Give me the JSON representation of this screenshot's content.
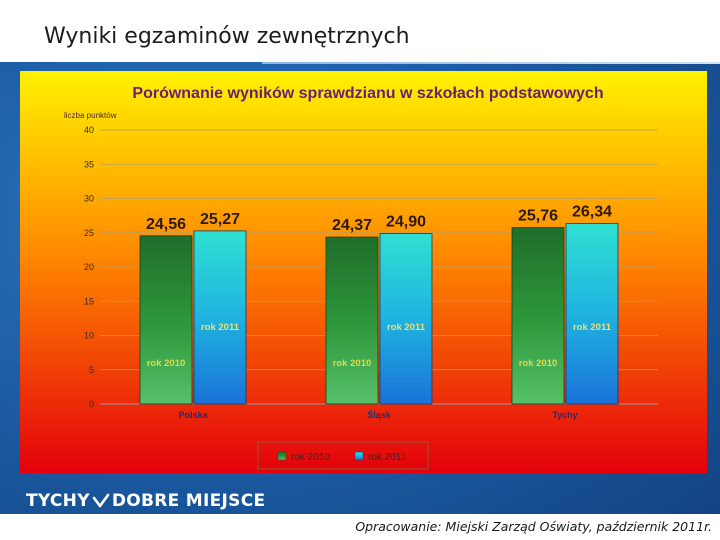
{
  "slide": {
    "title": "Wyniki egzaminów zewnętrznych",
    "footer": "Opracowanie: Miejski Zarząd Oświaty, październik 2011r."
  },
  "logo": {
    "left": "TYCHY",
    "right": "DOBRE MIEJSCE"
  },
  "colors": {
    "rok2010": "#2e8b3c",
    "rok2011": "#1f9fd6",
    "panel_top": "#ffef00",
    "panel_bottom": "#e8000a"
  },
  "chart_data": {
    "type": "bar",
    "title": "Porównanie wyników sprawdzianu w szkołach podstawowych",
    "ylabel": "liczba punktów",
    "xlabel": "",
    "ylim": [
      0,
      40
    ],
    "yticks": [
      "0",
      "5",
      "10",
      "15",
      "20",
      "25",
      "30",
      "35",
      "40"
    ],
    "grid": true,
    "legend_position": "bottom",
    "categories": [
      "Polska",
      "Śląsk",
      "Tychy"
    ],
    "series": [
      {
        "name": "rok 2010",
        "values": [
          24.56,
          24.37,
          25.76
        ],
        "labels": [
          "24,56",
          "24,37",
          "25,76"
        ]
      },
      {
        "name": "rok 2011",
        "values": [
          25.27,
          24.9,
          26.34
        ],
        "labels": [
          "25,27",
          "24,90",
          "26,34"
        ]
      }
    ]
  }
}
